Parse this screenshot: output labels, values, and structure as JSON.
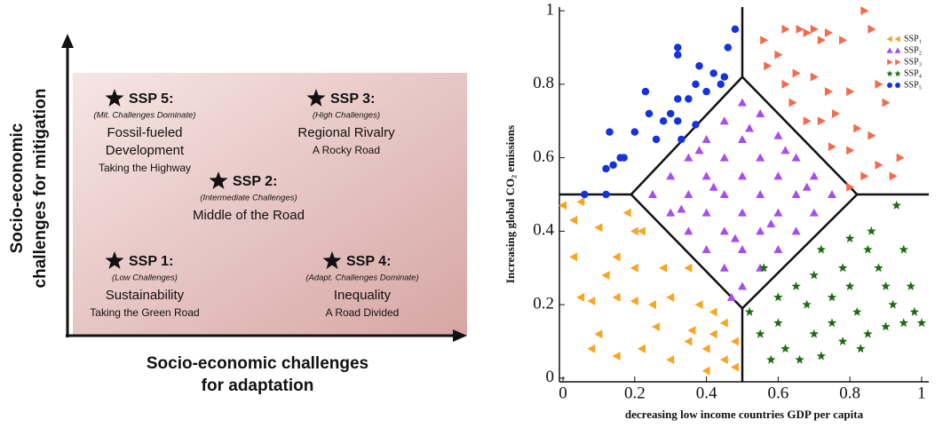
{
  "diagram": {
    "y_axis_label": [
      "Socio-economic",
      "challenges for mitigation"
    ],
    "x_axis_label": [
      "Socio-economic challenges",
      "for adaptation"
    ],
    "scenarios": [
      {
        "title": "SSP 5:",
        "note": "(Mit. Challenges Dominate)",
        "name": [
          "Fossil-fueled",
          "Development"
        ],
        "tagline": "Taking the Highway"
      },
      {
        "title": "SSP 3:",
        "note": "(High Challenges)",
        "name": [
          "Regional Rivalry"
        ],
        "tagline": "A Rocky Road"
      },
      {
        "title": "SSP 2:",
        "note": "(Intermediate Challenges)",
        "name": [
          "Middle of the Road"
        ]
      },
      {
        "title": "SSP 1:",
        "note": "(Low Challenges)",
        "name": [
          "Sustainability"
        ],
        "tagline": "Taking the Green Road"
      },
      {
        "title": "SSP 4:",
        "note": "(Adapt. Challenges Dominate)",
        "name": [
          "Inequality"
        ],
        "tagline": "A Road Divided"
      }
    ]
  },
  "chart_data": {
    "type": "scatter",
    "xlabel": "decreasing low income countries GDP per capita",
    "ylabel": "Increasing global CO₂ emissions",
    "xlim": [
      -0.01,
      1.02
    ],
    "ylim": [
      -0.01,
      1.01
    ],
    "xticks": [
      0,
      0.2,
      0.4,
      0.6,
      0.8,
      1
    ],
    "yticks": [
      0,
      0.2,
      0.4,
      0.6,
      0.8,
      1
    ],
    "legend": "upper right",
    "dividers": [
      [
        [
          0.5,
          -0.01
        ],
        [
          0.5,
          0.19
        ]
      ],
      [
        [
          0.5,
          0.82
        ],
        [
          0.5,
          1.01
        ]
      ],
      [
        [
          -0.01,
          0.5
        ],
        [
          0.19,
          0.5
        ]
      ],
      [
        [
          0.82,
          0.5
        ],
        [
          1.02,
          0.5
        ]
      ],
      [
        [
          0.19,
          0.5
        ],
        [
          0.5,
          0.82
        ]
      ],
      [
        [
          0.5,
          0.82
        ],
        [
          0.82,
          0.5
        ]
      ],
      [
        [
          0.82,
          0.5
        ],
        [
          0.5,
          0.19
        ]
      ],
      [
        [
          0.5,
          0.19
        ],
        [
          0.19,
          0.5
        ]
      ]
    ],
    "series": [
      {
        "name": "SSP₁",
        "color": "#f5a623",
        "marker": "triangle-left",
        "x": [
          0.0,
          0.05,
          0.03,
          0.1,
          0.18,
          0.2,
          0.22,
          0.03,
          0.15,
          0.12,
          0.2,
          0.28,
          0.35,
          0.05,
          0.08,
          0.15,
          0.2,
          0.25,
          0.3,
          0.38,
          0.42,
          0.45,
          0.48,
          0.1,
          0.08,
          0.15,
          0.22,
          0.3,
          0.35,
          0.4,
          0.45,
          0.48,
          0.26,
          0.36,
          0.42,
          0.4
        ],
        "y": [
          0.47,
          0.48,
          0.43,
          0.41,
          0.45,
          0.4,
          0.4,
          0.33,
          0.33,
          0.28,
          0.3,
          0.3,
          0.3,
          0.22,
          0.21,
          0.22,
          0.21,
          0.2,
          0.22,
          0.2,
          0.18,
          0.15,
          0.1,
          0.12,
          0.08,
          0.06,
          0.08,
          0.05,
          0.1,
          0.08,
          0.05,
          0.03,
          0.14,
          0.13,
          0.12,
          0.02
        ]
      },
      {
        "name": "SSP₂",
        "color": "#a64df0",
        "marker": "triangle-up",
        "x": [
          0.5,
          0.45,
          0.55,
          0.4,
          0.5,
          0.6,
          0.35,
          0.45,
          0.55,
          0.65,
          0.3,
          0.4,
          0.5,
          0.6,
          0.7,
          0.25,
          0.35,
          0.45,
          0.55,
          0.65,
          0.75,
          0.3,
          0.4,
          0.5,
          0.6,
          0.7,
          0.35,
          0.45,
          0.55,
          0.65,
          0.4,
          0.5,
          0.6,
          0.45,
          0.55,
          0.5,
          0.47,
          0.33,
          0.62,
          0.52,
          0.42,
          0.58,
          0.68,
          0.38,
          0.48
        ],
        "y": [
          0.75,
          0.7,
          0.72,
          0.65,
          0.65,
          0.66,
          0.6,
          0.6,
          0.6,
          0.6,
          0.55,
          0.55,
          0.55,
          0.55,
          0.55,
          0.5,
          0.5,
          0.5,
          0.5,
          0.5,
          0.5,
          0.45,
          0.45,
          0.45,
          0.45,
          0.45,
          0.4,
          0.4,
          0.4,
          0.4,
          0.35,
          0.35,
          0.35,
          0.3,
          0.3,
          0.25,
          0.22,
          0.46,
          0.62,
          0.68,
          0.52,
          0.42,
          0.52,
          0.62,
          0.38
        ]
      },
      {
        "name": "SSP₃",
        "color": "#f26b4f",
        "marker": "triangle-right",
        "x": [
          0.56,
          0.6,
          0.62,
          0.66,
          0.68,
          0.7,
          0.72,
          0.74,
          0.78,
          0.84,
          0.86,
          0.57,
          0.62,
          0.65,
          0.7,
          0.74,
          0.8,
          0.88,
          0.9,
          0.64,
          0.68,
          0.72,
          0.76,
          0.82,
          0.86,
          0.94,
          0.75,
          0.8,
          0.88,
          0.92,
          0.84,
          0.8
        ],
        "y": [
          0.92,
          0.88,
          0.95,
          0.95,
          0.94,
          0.95,
          0.92,
          0.94,
          0.92,
          1.0,
          0.95,
          0.85,
          0.8,
          0.83,
          0.82,
          0.78,
          0.78,
          0.8,
          0.75,
          0.75,
          0.7,
          0.7,
          0.72,
          0.68,
          0.66,
          0.6,
          0.63,
          0.62,
          0.58,
          0.55,
          0.55,
          0.52
        ]
      },
      {
        "name": "SSP₄",
        "color": "#1e6b12",
        "marker": "star",
        "x": [
          0.52,
          0.55,
          0.6,
          0.62,
          0.58,
          0.66,
          0.7,
          0.68,
          0.65,
          0.7,
          0.72,
          0.75,
          0.78,
          0.8,
          0.82,
          0.85,
          0.88,
          0.9,
          0.92,
          0.95,
          0.98,
          1.0,
          0.85,
          0.78,
          0.75,
          0.93,
          0.86,
          0.95,
          0.97,
          0.6,
          0.56,
          0.83,
          0.72,
          0.9,
          0.8
        ],
        "y": [
          0.18,
          0.12,
          0.15,
          0.08,
          0.05,
          0.05,
          0.12,
          0.2,
          0.25,
          0.28,
          0.35,
          0.22,
          0.3,
          0.25,
          0.18,
          0.35,
          0.3,
          0.25,
          0.2,
          0.15,
          0.18,
          0.15,
          0.12,
          0.1,
          0.15,
          0.47,
          0.4,
          0.35,
          0.25,
          0.22,
          0.3,
          0.08,
          0.06,
          0.14,
          0.38
        ]
      },
      {
        "name": "SSP₅",
        "color": "#1432e0",
        "marker": "circle",
        "x": [
          0.06,
          0.12,
          0.12,
          0.14,
          0.16,
          0.17,
          0.13,
          0.2,
          0.23,
          0.24,
          0.26,
          0.28,
          0.3,
          0.32,
          0.32,
          0.32,
          0.32,
          0.33,
          0.35,
          0.37,
          0.38,
          0.4,
          0.42,
          0.44,
          0.48,
          0.46,
          0.45,
          0.37
        ],
        "y": [
          0.5,
          0.5,
          0.57,
          0.58,
          0.6,
          0.6,
          0.67,
          0.67,
          0.78,
          0.72,
          0.65,
          0.7,
          0.72,
          0.88,
          0.9,
          0.76,
          0.7,
          0.65,
          0.76,
          0.8,
          0.85,
          0.78,
          0.83,
          0.8,
          0.95,
          0.9,
          0.82,
          0.69
        ]
      }
    ]
  }
}
